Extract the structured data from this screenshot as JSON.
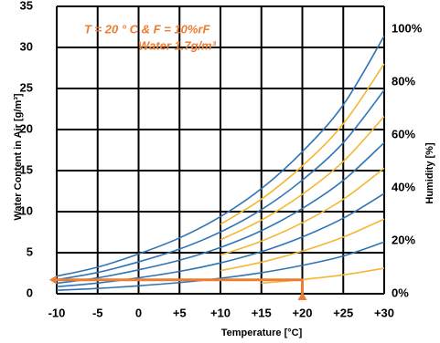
{
  "chart_data": {
    "type": "line",
    "x_label": "Temperature [°C]",
    "y_label": "Water Content in Air [g/m³]",
    "y2_label": "Humidity [%]",
    "annotations": [
      "T = 20 ° C & F = 10%rF",
      "Water 1.7g/m³"
    ],
    "marker": {
      "x": 20,
      "y": 1.7,
      "color": "#ed7d31"
    },
    "x": [
      -10,
      -5,
      0,
      5,
      10,
      15,
      20,
      25,
      30
    ],
    "series": [
      {
        "color": "#2e75b6",
        "values": [
          2.14,
          3.24,
          4.85,
          6.8,
          9.4,
          12.8,
          17.3,
          23.0,
          31.4
        ]
      },
      {
        "color": "#f5b731",
        "values": [
          null,
          null,
          null,
          null,
          8.46,
          11.52,
          15.57,
          20.7,
          28.0
        ]
      },
      {
        "color": "#2e75b6",
        "values": [
          1.71,
          2.59,
          3.88,
          5.44,
          7.52,
          10.24,
          13.84,
          18.4,
          24.8
        ]
      },
      {
        "color": "#f5b731",
        "values": [
          null,
          null,
          null,
          null,
          6.58,
          8.96,
          12.11,
          16.1,
          21.6
        ]
      },
      {
        "color": "#2e75b6",
        "values": [
          1.28,
          1.94,
          2.91,
          4.08,
          5.64,
          7.68,
          10.38,
          13.8,
          18.4
        ]
      },
      {
        "color": "#f5b731",
        "values": [
          null,
          null,
          null,
          null,
          4.7,
          6.4,
          8.65,
          11.5,
          15.3
        ]
      },
      {
        "color": "#2e75b6",
        "values": [
          0.86,
          1.3,
          1.94,
          2.72,
          3.76,
          5.12,
          6.92,
          9.2,
          12.2
        ]
      },
      {
        "color": "#f5b731",
        "values": [
          null,
          null,
          null,
          null,
          2.82,
          3.84,
          5.19,
          6.9,
          9.1
        ]
      },
      {
        "color": "#2e75b6",
        "values": [
          0.43,
          0.65,
          0.97,
          1.36,
          1.88,
          2.56,
          3.46,
          4.6,
          6.3
        ]
      },
      {
        "color": "#f5b731",
        "values": [
          null,
          null,
          null,
          null,
          null,
          1.28,
          1.73,
          2.3,
          3.1
        ]
      }
    ],
    "xlim": [
      -10,
      30
    ],
    "xticks": [
      -10,
      -5,
      0,
      {
        "value": 5,
        "label": "+5"
      },
      {
        "value": 10,
        "label": "+10"
      },
      {
        "value": 15,
        "label": "+15"
      },
      {
        "value": 20,
        "label": "+20"
      },
      {
        "value": 25,
        "label": "+25"
      },
      {
        "value": 30,
        "label": "+30"
      }
    ],
    "ylim": [
      0,
      35
    ],
    "yticks": [
      0,
      5,
      10,
      15,
      20,
      25,
      30,
      35
    ],
    "y2lim": [
      0,
      108.6
    ],
    "y2ticks": [
      {
        "value": 0,
        "label": "0%"
      },
      {
        "value": 20,
        "label": "20%"
      },
      {
        "value": 40,
        "label": "40%"
      },
      {
        "value": 60,
        "label": "60%"
      },
      {
        "value": 80,
        "label": "80%"
      },
      {
        "value": 100,
        "label": "100%"
      }
    ],
    "grid": true
  }
}
